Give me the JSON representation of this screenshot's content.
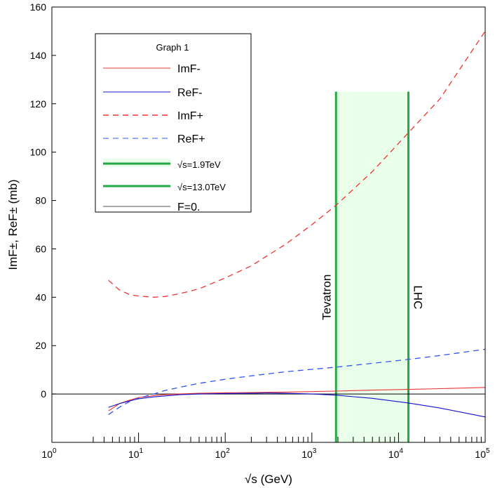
{
  "chart_data": {
    "type": "line",
    "title": "",
    "xlabel": "√s (GeV)",
    "ylabel": "ImF±, ReF± (mb)",
    "xscale": "log",
    "xlim": [
      1,
      100000
    ],
    "ylim": [
      -20,
      160
    ],
    "y_ticks": [
      0,
      20,
      40,
      60,
      80,
      100,
      120,
      140,
      160
    ],
    "x_ticks": [
      {
        "base": "10",
        "exp": "0"
      },
      {
        "base": "10",
        "exp": "1"
      },
      {
        "base": "10",
        "exp": "2"
      },
      {
        "base": "10",
        "exp": "3"
      },
      {
        "base": "10",
        "exp": "4"
      },
      {
        "base": "10",
        "exp": "5"
      }
    ],
    "legend": {
      "title": "Graph 1",
      "placement": "top-left",
      "entries": [
        {
          "label": "ImF-",
          "color": "#ee3333",
          "style": "solid",
          "width": 1
        },
        {
          "label": "ReF-",
          "color": "#1111cc",
          "style": "solid",
          "width": 1
        },
        {
          "label": "ImF+",
          "color": "#ee3333",
          "style": "dashed",
          "width": 1.5
        },
        {
          "label": "ReF+",
          "color": "#3355ee",
          "style": "dashed",
          "width": 1
        },
        {
          "label": "√s=1.9TeV",
          "color": "#22aa44",
          "style": "solid",
          "width": 3,
          "fill": "#eaffea"
        },
        {
          "label": "√s=13.0TeV",
          "color": "#22aa44",
          "style": "solid",
          "width": 3
        },
        {
          "label": "F=0.",
          "color": "#555555",
          "style": "solid",
          "width": 1
        }
      ]
    },
    "series": [
      {
        "name": "ImF-",
        "color": "#ee3333",
        "style": "solid",
        "x": [
          4.5,
          6,
          8,
          10,
          15,
          20,
          30,
          50,
          100,
          200,
          500,
          1000,
          1900,
          5000,
          13000,
          30000,
          100000
        ],
        "y": [
          -7,
          -4,
          -2.5,
          -1.5,
          -0.7,
          -0.3,
          0,
          0.3,
          0.5,
          0.6,
          0.8,
          1,
          1.2,
          1.6,
          1.9,
          2.2,
          2.7
        ]
      },
      {
        "name": "ReF-",
        "color": "#1111cc",
        "style": "solid",
        "x": [
          4.5,
          6,
          8,
          10,
          15,
          20,
          30,
          50,
          100,
          200,
          300,
          500,
          1000,
          1900,
          5000,
          13000,
          30000,
          100000
        ],
        "y": [
          -5.5,
          -4,
          -2.8,
          -2,
          -1.2,
          -0.8,
          -0.3,
          0,
          0.2,
          0.3,
          0.4,
          0.3,
          0,
          -0.5,
          -1.8,
          -3.7,
          -5.8,
          -9.5
        ]
      },
      {
        "name": "ImF+",
        "color": "#ee3333",
        "style": "dashed",
        "x": [
          4.5,
          6,
          8,
          10,
          15,
          20,
          30,
          50,
          100,
          200,
          500,
          1000,
          1900,
          5000,
          13000,
          30000,
          100000
        ],
        "y": [
          47,
          43,
          41,
          40.5,
          40,
          40.3,
          41.5,
          43.5,
          48,
          53,
          62,
          70,
          78,
          92,
          108,
          122,
          150
        ]
      },
      {
        "name": "ReF+",
        "color": "#3355ee",
        "style": "dashed",
        "x": [
          4.5,
          6,
          8,
          10,
          15,
          20,
          30,
          50,
          100,
          200,
          500,
          1000,
          1900,
          5000,
          13000,
          30000,
          100000
        ],
        "y": [
          -8.5,
          -5.5,
          -3,
          -1.7,
          0,
          1.4,
          2.8,
          4.4,
          6.1,
          7.5,
          9.2,
          10.2,
          11.1,
          12.7,
          14.3,
          15.9,
          18.5
        ]
      }
    ],
    "bands": [
      {
        "x_from": 1900,
        "x_to": 13000,
        "y_top": 125,
        "fill": "#eaffea",
        "edge_color": "#22aa44"
      }
    ],
    "reference_line": {
      "name": "F=0.",
      "y": 0,
      "color": "#000000"
    },
    "annotations": [
      {
        "text": "Tevatron",
        "x": 1900,
        "y": 40,
        "rotation": -90
      },
      {
        "text": "LHC",
        "x": 13000,
        "y": 40,
        "rotation": 90
      }
    ],
    "minor_ticks": [
      3,
      4,
      5,
      6,
      7,
      8,
      9,
      20,
      30,
      40,
      50,
      60,
      70,
      80,
      90,
      200,
      300,
      400,
      500,
      600,
      700,
      800,
      900,
      2000,
      3000,
      4000,
      5000,
      6000,
      7000,
      8000,
      9000,
      20000,
      30000,
      40000,
      50000,
      60000,
      70000,
      80000,
      90000
    ]
  }
}
